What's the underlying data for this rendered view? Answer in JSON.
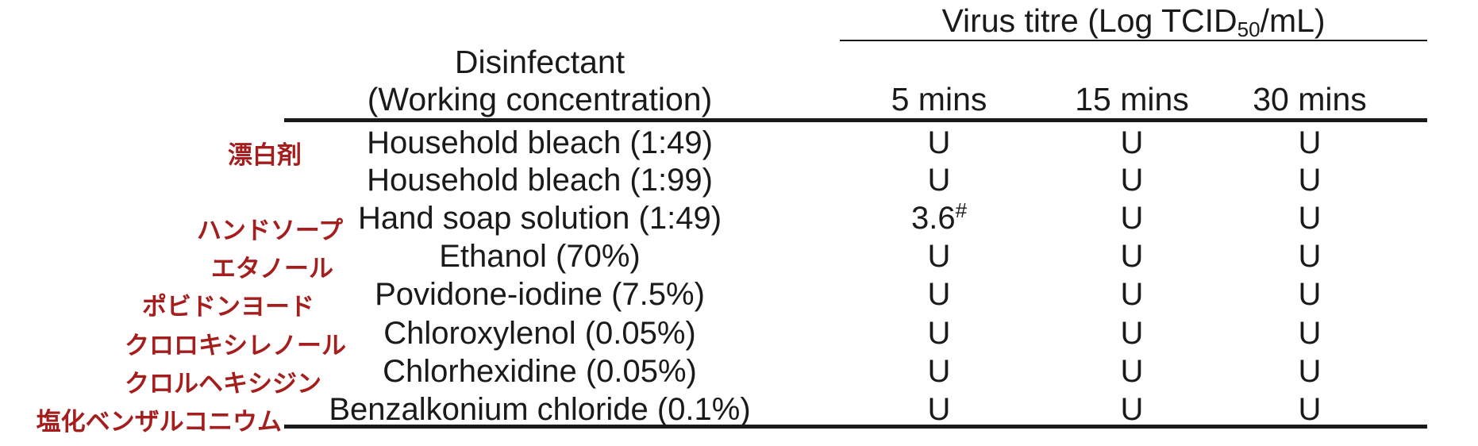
{
  "table": {
    "header": {
      "group_title_prefix": "Virus titre (Log TCID",
      "group_title_sub": "50",
      "group_title_suffix": "/mL)",
      "disinfectant_line1": "Disinfectant",
      "disinfectant_line2": "(Working concentration)",
      "time_columns": [
        "5 mins",
        "15 mins",
        "30 mins"
      ]
    },
    "rows": [
      {
        "jp": "漂白剤",
        "name": "Household bleach (1:49)",
        "v5": "U",
        "v5_sup": "",
        "v15": "U",
        "v30": "U"
      },
      {
        "jp": "",
        "name": "Household bleach (1:99)",
        "v5": "U",
        "v5_sup": "",
        "v15": "U",
        "v30": "U"
      },
      {
        "jp": "ハンドソープ",
        "name": "Hand soap solution (1:49)",
        "v5": "3.6",
        "v5_sup": "#",
        "v15": "U",
        "v30": "U"
      },
      {
        "jp": "エタノール",
        "name": "Ethanol (70%)",
        "v5": "U",
        "v5_sup": "",
        "v15": "U",
        "v30": "U"
      },
      {
        "jp": "ポビドンヨード",
        "name": "Povidone-iodine (7.5%)",
        "v5": "U",
        "v5_sup": "",
        "v15": "U",
        "v30": "U"
      },
      {
        "jp": "クロロキシレノール",
        "name": "Chloroxylenol (0.05%)",
        "v5": "U",
        "v5_sup": "",
        "v15": "U",
        "v30": "U"
      },
      {
        "jp": "クロルヘキシジン",
        "name": "Chlorhexidine (0.05%)",
        "v5": "U",
        "v5_sup": "",
        "v15": "U",
        "v30": "U"
      },
      {
        "jp": "塩化ベンザルコニウム",
        "name": "Benzalkonium chloride (0.1%)",
        "v5": "U",
        "v5_sup": "",
        "v15": "U",
        "v30": "U"
      }
    ]
  }
}
